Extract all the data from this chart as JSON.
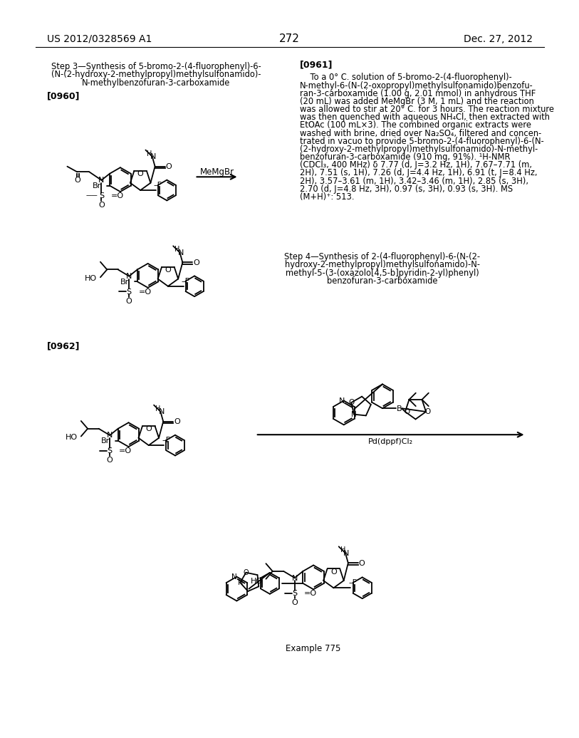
{
  "page_number": "272",
  "header_left": "US 2012/0328569 A1",
  "header_right": "Dec. 27, 2012",
  "background_color": "#ffffff",
  "text_color": "#000000",
  "step3_title_line1": "Step 3—Synthesis of 5-bromo-2-(4-fluorophenyl)-6-",
  "step3_title_line2": "(N-(2-hydroxy-2-methylpropyl)methylsulfonamido)-",
  "step3_title_line3": "N-methylbenzofuran-3-carboxamide",
  "ref0960": "[0960]",
  "ref0961": "[0961]",
  "ref0962": "[0962]",
  "step4_title_line1": "Step 4—Synthesis of 2-(4-fluorophenyl)-6-(N-(2-",
  "step4_title_line2": "hydroxy-2-methylpropyl)methylsulfonamido)-N-",
  "step4_title_line3": "methyl-5-(3-(oxazolo[4,5-b]pyridin-2-yl)phenyl)",
  "step4_title_line4": "benzofuran-3-carboxamide",
  "example775": "Example 775",
  "reagent_arrow": "MeMgBr",
  "reagent2": "Pd(dppf)Cl₂"
}
